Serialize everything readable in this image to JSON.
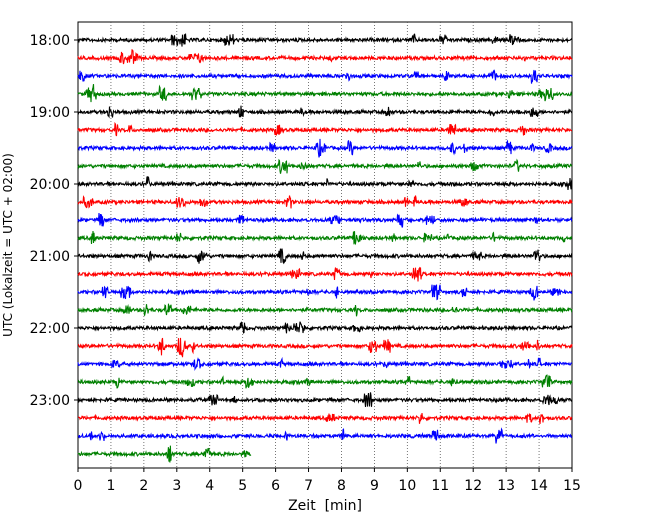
{
  "chart_data": {
    "type": "line",
    "xlabel": "Zeit  [min]",
    "ylabel": "UTC (Lokalzeit = UTC + 02:00)",
    "xlim": [
      0,
      15
    ],
    "x_ticks": [
      0,
      1,
      2,
      3,
      4,
      5,
      6,
      7,
      8,
      9,
      10,
      11,
      12,
      13,
      14,
      15
    ],
    "y_ticks": [
      "18:00",
      "19:00",
      "20:00",
      "21:00",
      "22:00",
      "23:00"
    ],
    "grid": "vertical dotted",
    "row_interval_minutes": 15,
    "start_time": "18:00",
    "row_colors": [
      "#000000",
      "#ff0000",
      "#0000ff",
      "#008000"
    ],
    "traces": [
      {
        "start": "18:00",
        "color": "#000000",
        "end_minute": 15
      },
      {
        "start": "18:15",
        "color": "#ff0000",
        "end_minute": 15
      },
      {
        "start": "18:30",
        "color": "#0000ff",
        "end_minute": 15
      },
      {
        "start": "18:45",
        "color": "#008000",
        "end_minute": 15
      },
      {
        "start": "19:00",
        "color": "#000000",
        "end_minute": 15
      },
      {
        "start": "19:15",
        "color": "#ff0000",
        "end_minute": 15
      },
      {
        "start": "19:30",
        "color": "#0000ff",
        "end_minute": 15
      },
      {
        "start": "19:45",
        "color": "#008000",
        "end_minute": 15
      },
      {
        "start": "20:00",
        "color": "#000000",
        "end_minute": 15
      },
      {
        "start": "20:15",
        "color": "#ff0000",
        "end_minute": 15
      },
      {
        "start": "20:30",
        "color": "#0000ff",
        "end_minute": 15
      },
      {
        "start": "20:45",
        "color": "#008000",
        "end_minute": 15
      },
      {
        "start": "21:00",
        "color": "#000000",
        "end_minute": 15
      },
      {
        "start": "21:15",
        "color": "#ff0000",
        "end_minute": 15
      },
      {
        "start": "21:30",
        "color": "#0000ff",
        "end_minute": 15
      },
      {
        "start": "21:45",
        "color": "#008000",
        "end_minute": 15
      },
      {
        "start": "22:00",
        "color": "#000000",
        "end_minute": 15
      },
      {
        "start": "22:15",
        "color": "#ff0000",
        "end_minute": 15
      },
      {
        "start": "22:30",
        "color": "#0000ff",
        "end_minute": 15
      },
      {
        "start": "22:45",
        "color": "#008000",
        "end_minute": 15
      },
      {
        "start": "23:00",
        "color": "#000000",
        "end_minute": 15
      },
      {
        "start": "23:15",
        "color": "#ff0000",
        "end_minute": 15
      },
      {
        "start": "23:30",
        "color": "#0000ff",
        "end_minute": 15
      },
      {
        "start": "23:45",
        "color": "#008000",
        "end_minute": 5.25
      }
    ]
  }
}
